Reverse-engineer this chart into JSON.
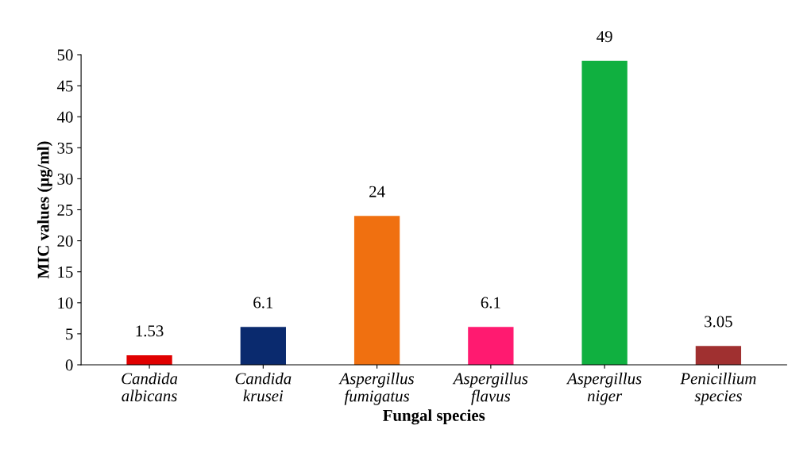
{
  "chart_data": {
    "type": "bar",
    "xlabel": "Fungal species",
    "ylabel": "MIC values (µg/ml)",
    "categories": [
      "Candida\nalbicans",
      "Candida\nkrusei",
      "Aspergillus\nfumigatus",
      "Aspergillus\nflavus",
      "Aspergillus\nniger",
      "Penicillium\nspecies"
    ],
    "values": [
      1.53,
      6.1,
      24,
      6.1,
      49,
      3.05
    ],
    "colors": [
      "#e00000",
      "#0a2a6e",
      "#f07010",
      "#ff1a70",
      "#10b040",
      "#a03030"
    ],
    "ylim": [
      0,
      50
    ],
    "yticks": [
      0,
      5,
      10,
      15,
      20,
      25,
      30,
      35,
      40,
      45,
      50
    ],
    "data_labels": true,
    "grid": false,
    "legend": false
  }
}
